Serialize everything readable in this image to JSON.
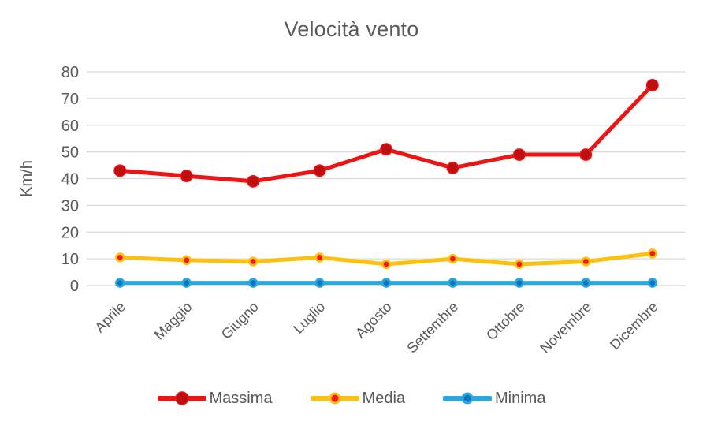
{
  "chart_data": {
    "type": "line",
    "title": "Velocità vento",
    "ylabel": "Km/h",
    "xlabel": "",
    "ylim": [
      0,
      80
    ],
    "yticks": [
      0,
      10,
      20,
      30,
      40,
      50,
      60,
      70,
      80
    ],
    "grid": true,
    "legend_position": "bottom",
    "categories": [
      "Aprile",
      "Maggio",
      "Giugno",
      "Luglio",
      "Agosto",
      "Settembre",
      "Ottobre",
      "Novembre",
      "Dicembre"
    ],
    "series": [
      {
        "name": "Massima",
        "values": [
          43,
          41,
          39,
          43,
          51,
          44,
          49,
          49,
          75
        ],
        "line_color": "#ee1414",
        "marker_fill": "#bd0e10",
        "marker_stroke": "#ee1414"
      },
      {
        "name": "Media",
        "values": [
          10.5,
          9.5,
          9,
          10.5,
          8,
          10,
          8,
          9,
          12
        ],
        "line_color": "#fdc00c",
        "marker_fill": "#f41616",
        "marker_stroke": "#fdc00c"
      },
      {
        "name": "Minima",
        "values": [
          1,
          1,
          1,
          1,
          1,
          1,
          1,
          1,
          1
        ],
        "line_color": "#27a8e0",
        "marker_fill": "#1173b9",
        "marker_stroke": "#27a8e0"
      }
    ],
    "colors": {
      "text": "#595959",
      "gridline": "#d9d9d9",
      "background": "#ffffff"
    }
  }
}
